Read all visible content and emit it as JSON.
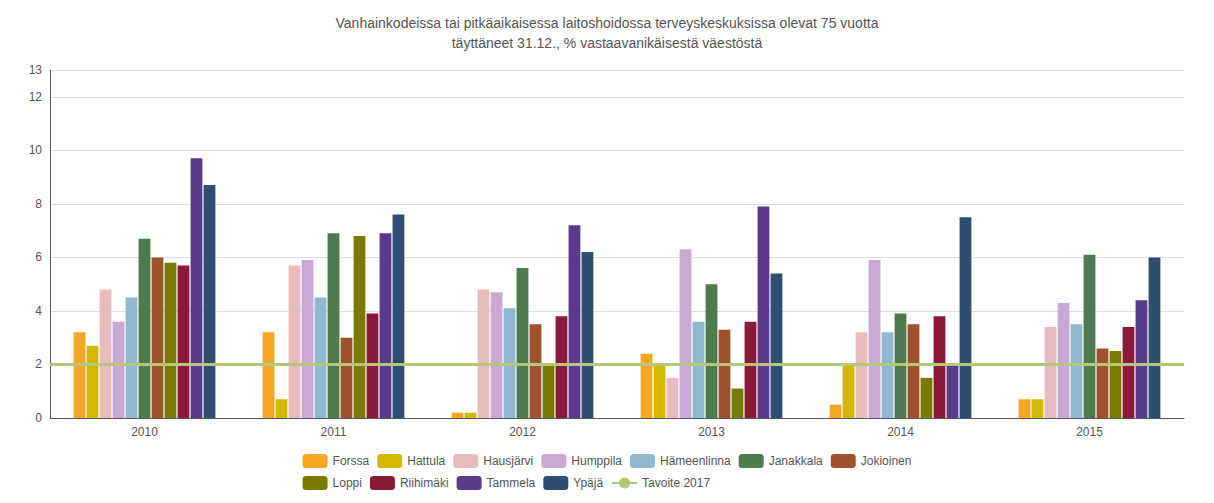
{
  "chart_data": {
    "type": "bar",
    "title": "Vanhainkodeissa tai pitkäaikaisessa laitoshoidossa terveyskeskuksissa olevat 75 vuotta\ntäyttäneet 31.12., % vastaavanikäisestä väestöstä",
    "categories": [
      "2010",
      "2011",
      "2012",
      "2013",
      "2014",
      "2015"
    ],
    "series": [
      {
        "name": "Forssa",
        "color": "#F5A623",
        "values": [
          3.2,
          3.2,
          0.2,
          2.4,
          0.5,
          0.7
        ]
      },
      {
        "name": "Hattula",
        "color": "#D4B800",
        "values": [
          2.7,
          0.7,
          0.2,
          2.0,
          2.0,
          0.7
        ]
      },
      {
        "name": "Hausjärvi",
        "color": "#E8BCBC",
        "values": [
          4.8,
          5.7,
          4.8,
          1.5,
          3.2,
          3.4
        ]
      },
      {
        "name": "Humppila",
        "color": "#C9A8D4",
        "values": [
          3.6,
          5.9,
          4.7,
          6.3,
          5.9,
          4.3
        ]
      },
      {
        "name": "Hämeenlinna",
        "color": "#90B8D0",
        "values": [
          4.5,
          4.5,
          4.1,
          3.6,
          3.2,
          3.5
        ]
      },
      {
        "name": "Janakkala",
        "color": "#4E7B4E",
        "values": [
          6.7,
          6.9,
          5.6,
          5.0,
          3.9,
          6.1
        ]
      },
      {
        "name": "Jokioinen",
        "color": "#A0522D",
        "values": [
          6.0,
          3.0,
          3.5,
          3.3,
          3.5,
          2.6
        ]
      },
      {
        "name": "Loppi",
        "color": "#7A7A00",
        "values": [
          5.8,
          6.8,
          2.0,
          1.1,
          1.5,
          2.5
        ]
      },
      {
        "name": "Riihimäki",
        "color": "#8B1A3A",
        "values": [
          5.7,
          3.9,
          3.8,
          3.6,
          3.8,
          3.4
        ]
      },
      {
        "name": "Tammela",
        "color": "#5A3A8A",
        "values": [
          9.7,
          6.9,
          7.2,
          7.9,
          2.0,
          4.4
        ]
      },
      {
        "name": "Ypäjä",
        "color": "#2E4F72",
        "values": [
          8.7,
          7.6,
          6.2,
          5.4,
          7.5,
          6.0
        ]
      }
    ],
    "target_line": {
      "name": "Tavoite 2017",
      "value": 2.0,
      "color": "#B5C878"
    },
    "ylim": [
      0,
      13
    ],
    "yticks": [
      0,
      2,
      4,
      6,
      8,
      10,
      12
    ],
    "grid": true,
    "legend": "bottom"
  }
}
